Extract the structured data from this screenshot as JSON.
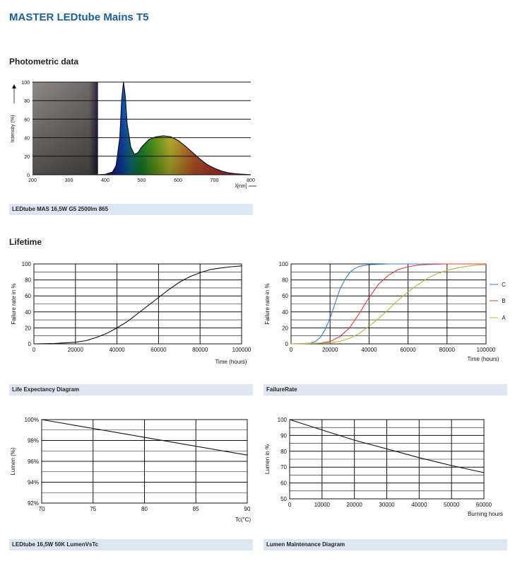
{
  "page_title": "MASTER LEDtube Mains T5",
  "sections": {
    "photometric": "Photometric data",
    "lifetime": "Lifetime"
  },
  "captions": {
    "spectrum": "LEDtube MAS 16,5W G5 2500lm 865",
    "life_expectancy": "Life Expectancy Diagram",
    "failure_rate": "FailureRate",
    "lumen_vs_tc": "LEDtube 16,5W 50K LumenVsTc",
    "lumen_maintenance": "Lumen Maintenance Diagram"
  },
  "colors": {
    "title": "#1c5f96",
    "caption_bg": "#dde6f2",
    "series_c": "#3a7fd0",
    "series_b": "#e03a3a",
    "series_a": "#b8b43a"
  },
  "chart_data": [
    {
      "id": "spectrum",
      "type": "line",
      "xlabel": "λ[nm]",
      "ylabel": "Intensity (%)",
      "xlim": [
        200,
        800
      ],
      "ylim": [
        0,
        100
      ],
      "x_ticks": [
        200,
        300,
        400,
        500,
        600,
        700,
        800
      ],
      "y_ticks": [
        0,
        20,
        40,
        60,
        80,
        100
      ],
      "series": [
        {
          "x": [
            380,
            400,
            420,
            430,
            440,
            445,
            450,
            455,
            460,
            470,
            480,
            490,
            500,
            520,
            540,
            560,
            580,
            600,
            620,
            640,
            660,
            680,
            700,
            720,
            740,
            760,
            780,
            800
          ],
          "values": [
            0,
            0.5,
            3,
            10,
            40,
            80,
            100,
            85,
            55,
            30,
            22,
            24,
            30,
            38,
            41,
            42,
            41,
            37,
            31,
            24,
            17,
            11,
            7,
            4,
            2,
            1,
            0.5,
            0
          ]
        }
      ]
    },
    {
      "id": "life-expectancy",
      "type": "line",
      "xlabel": "Time (hours)",
      "ylabel": "Failure rate in %",
      "xlim": [
        0,
        100000
      ],
      "ylim": [
        0,
        100
      ],
      "x_ticks": [
        "0",
        "20000",
        "40000",
        "60000",
        "80000",
        "100000"
      ],
      "y_ticks": [
        "0",
        "20",
        "40",
        "60",
        "80",
        "100"
      ],
      "series": [
        {
          "x": [
            0,
            10000,
            20000,
            25000,
            30000,
            35000,
            40000,
            45000,
            50000,
            55000,
            60000,
            65000,
            70000,
            75000,
            80000,
            85000,
            90000,
            95000,
            100000
          ],
          "values": [
            0,
            0.5,
            2,
            4,
            8,
            13,
            20,
            28,
            38,
            48,
            58,
            68,
            77,
            84,
            89,
            93,
            95,
            96.5,
            97.5
          ]
        }
      ]
    },
    {
      "id": "failure-rate",
      "type": "line",
      "xlabel": "Time (hours)",
      "ylabel": "Failure rate in %",
      "xlim": [
        0,
        100000
      ],
      "ylim": [
        0,
        100
      ],
      "x_ticks": [
        "0",
        "20000",
        "40000",
        "60000",
        "80000",
        "100000"
      ],
      "y_ticks": [
        "0",
        "20",
        "40",
        "60",
        "80",
        "100"
      ],
      "series": [
        {
          "name": "C",
          "x": [
            0,
            5000,
            10000,
            12500,
            15000,
            17500,
            20000,
            22500,
            25000,
            27500,
            30000,
            32500,
            35000,
            40000,
            45000,
            50000,
            55000,
            60000,
            100000
          ],
          "values": [
            0,
            0.2,
            1,
            3,
            8,
            18,
            32,
            50,
            68,
            80,
            89,
            94,
            97,
            99,
            99.5,
            100,
            100,
            100,
            100
          ]
        },
        {
          "name": "B",
          "x": [
            0,
            10000,
            15000,
            20000,
            25000,
            30000,
            35000,
            40000,
            45000,
            50000,
            55000,
            60000,
            65000,
            70000,
            75000,
            80000,
            100000
          ],
          "values": [
            0,
            0.5,
            1,
            3,
            9,
            20,
            38,
            58,
            75,
            86,
            93,
            96.5,
            98.5,
            99.3,
            99.7,
            100,
            100
          ]
        },
        {
          "name": "A",
          "x": [
            0,
            10000,
            20000,
            25000,
            30000,
            35000,
            40000,
            45000,
            50000,
            55000,
            60000,
            65000,
            70000,
            75000,
            80000,
            85000,
            90000,
            95000,
            100000
          ],
          "values": [
            0,
            0.5,
            1.5,
            3,
            7,
            13,
            22,
            32,
            43,
            55,
            65,
            74,
            82,
            88,
            92,
            95,
            97,
            98.5,
            99
          ]
        }
      ]
    },
    {
      "id": "lumen-vs-tc",
      "type": "line",
      "xlabel": "Tc(°C)",
      "ylabel": "Lumen (%)",
      "xlim": [
        70,
        90
      ],
      "ylim": [
        92,
        100
      ],
      "x_ticks": [
        "70",
        "75",
        "80",
        "85",
        "90"
      ],
      "y_ticks": [
        "92%",
        "94%",
        "96%",
        "98%",
        "100%"
      ],
      "series": [
        {
          "x": [
            70,
            90
          ],
          "values": [
            100,
            96.6
          ]
        }
      ]
    },
    {
      "id": "lumen-maintenance",
      "type": "line",
      "xlabel": "Burning hours",
      "ylabel": "Lumen in %",
      "xlim": [
        0,
        60000
      ],
      "ylim": [
        50,
        100
      ],
      "x_ticks": [
        "0",
        "10000",
        "20000",
        "30000",
        "40000",
        "50000",
        "60000"
      ],
      "y_ticks": [
        "50",
        "60",
        "70",
        "80",
        "90",
        "100"
      ],
      "series": [
        {
          "x": [
            0,
            10000,
            20000,
            30000,
            40000,
            50000,
            60000
          ],
          "values": [
            100,
            93.5,
            87,
            81.5,
            76,
            71,
            66.5
          ]
        }
      ]
    }
  ]
}
